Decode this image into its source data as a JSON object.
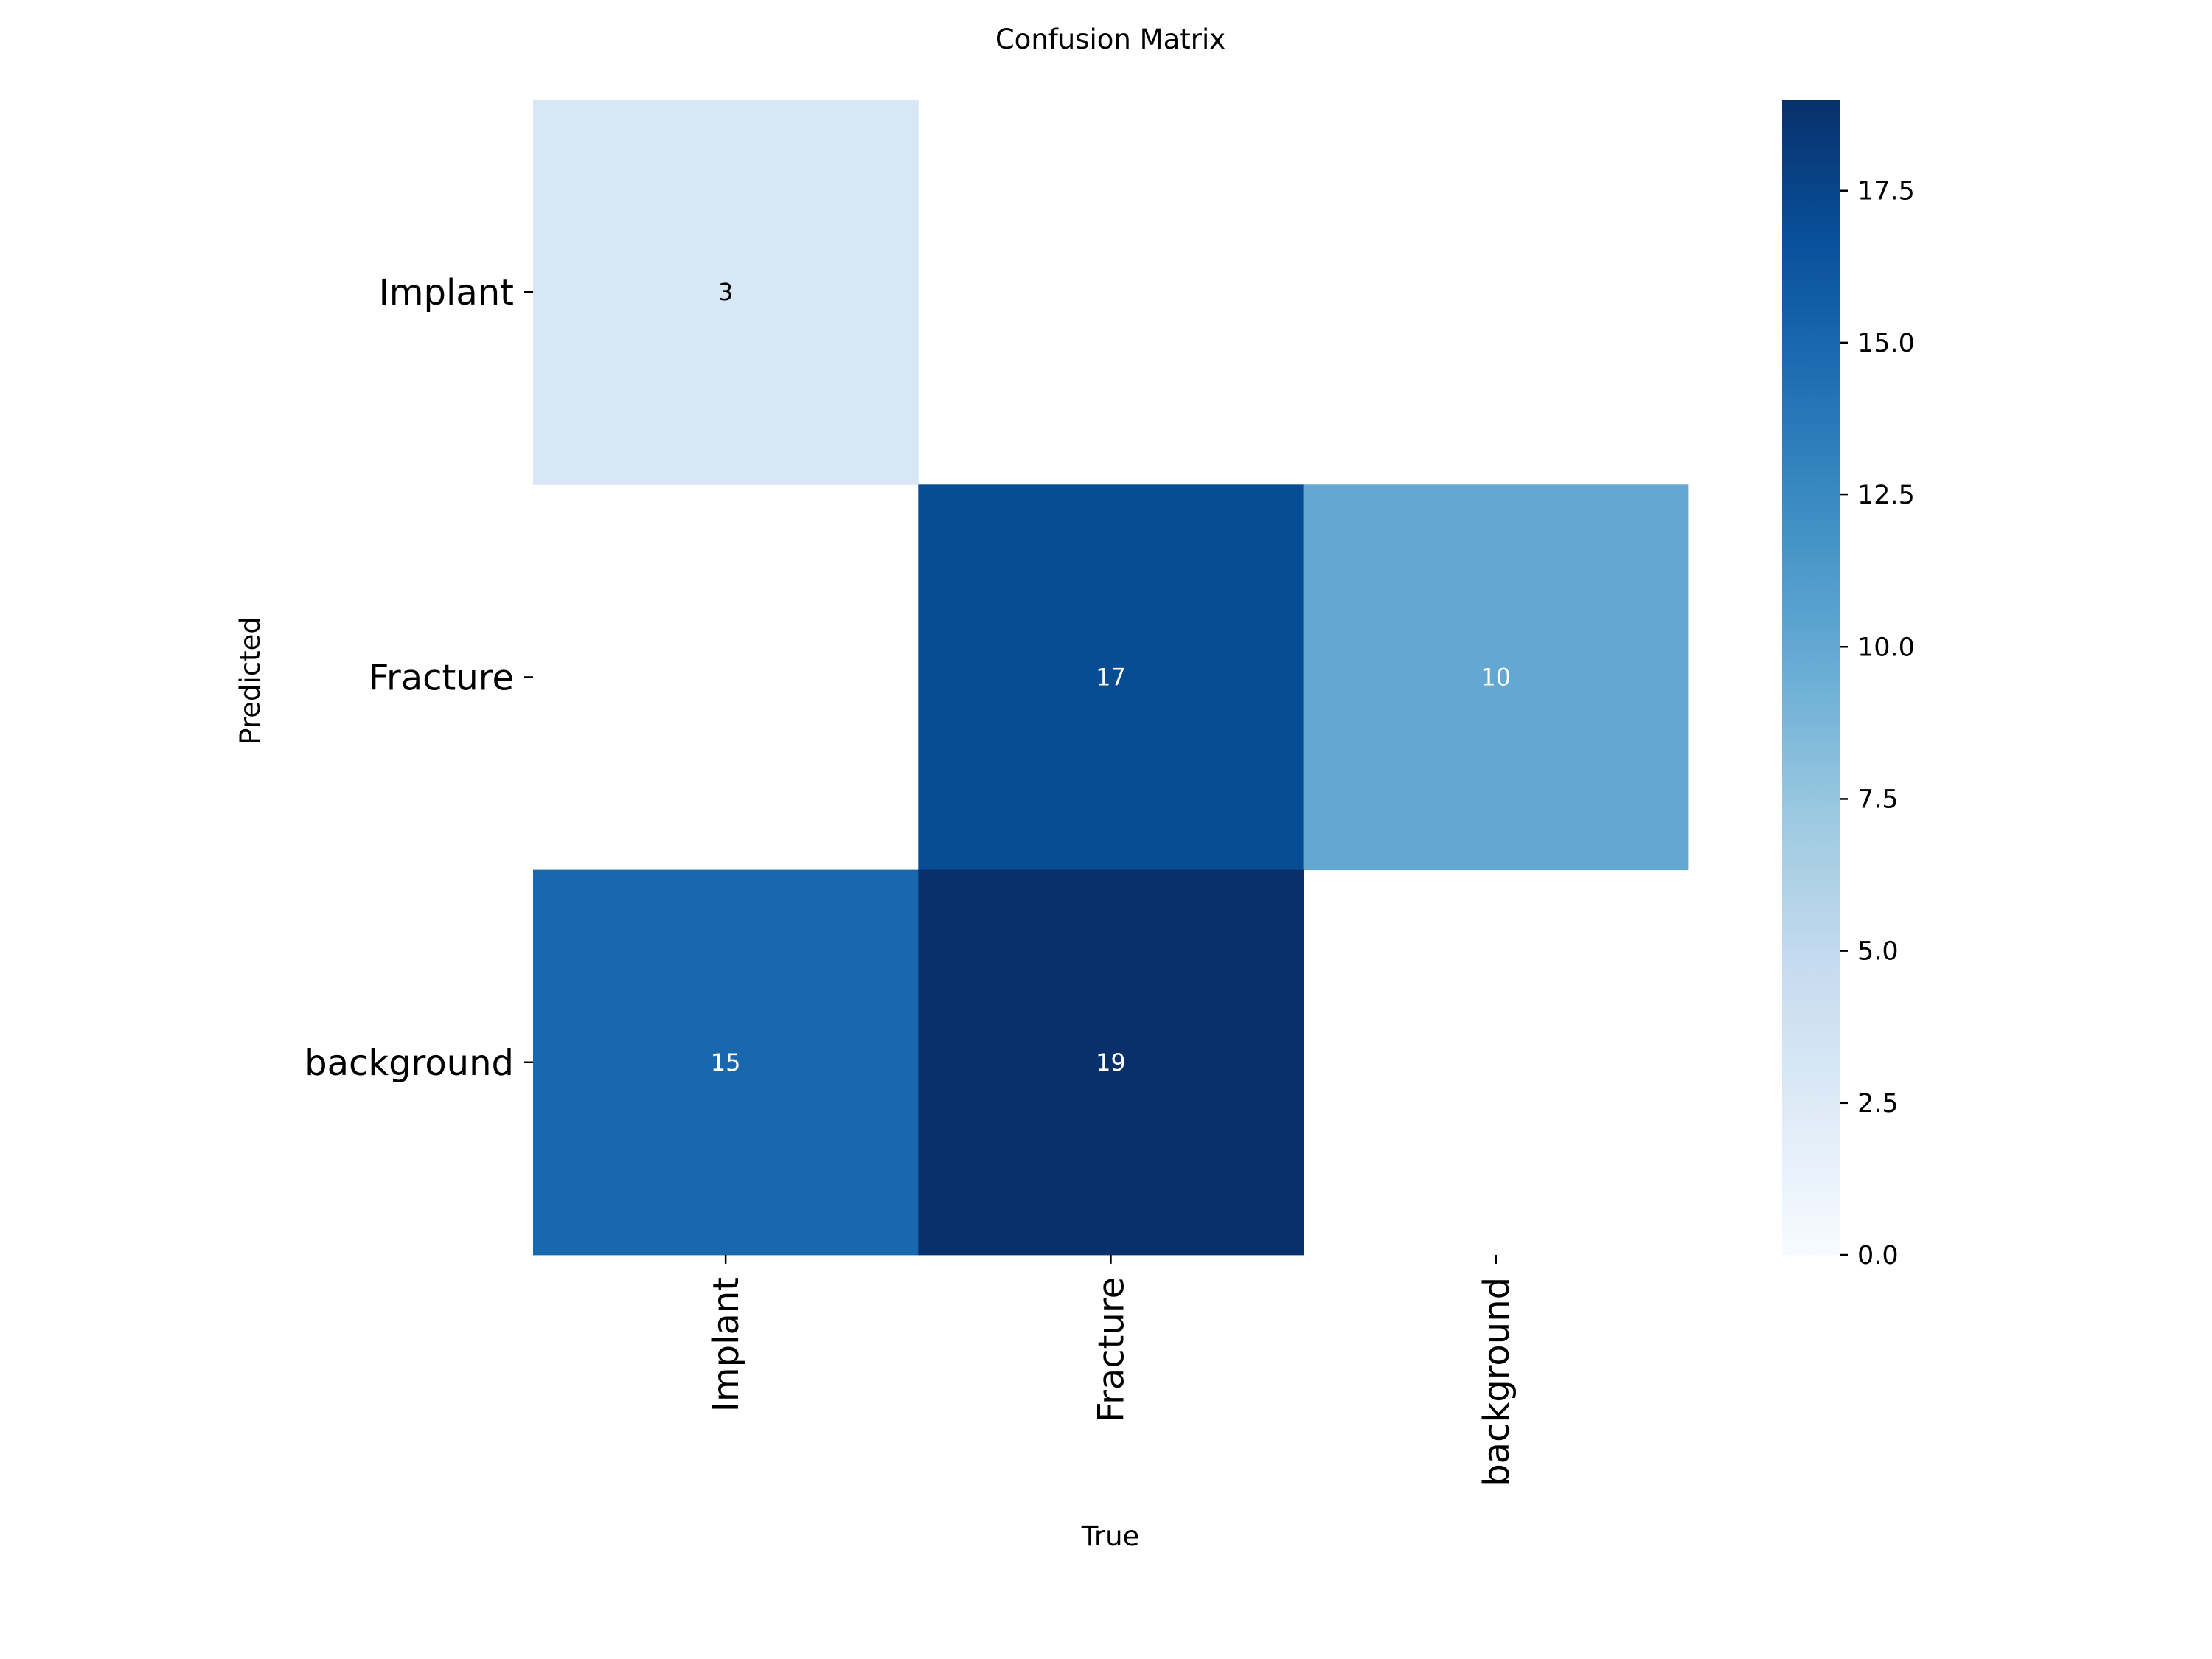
{
  "chart_data": {
    "type": "heatmap",
    "title": "Confusion Matrix",
    "xlabel": "True",
    "ylabel": "Predicted",
    "x_categories": [
      "Implant",
      "Fracture",
      "background"
    ],
    "y_categories": [
      "Implant",
      "Fracture",
      "background"
    ],
    "values": [
      [
        3,
        null,
        null
      ],
      [
        null,
        17,
        10
      ],
      [
        15,
        19,
        null
      ]
    ],
    "colorscale": "Blues",
    "colorbar": {
      "min": 0,
      "max": 19,
      "ticks": [
        0.0,
        2.5,
        5.0,
        7.5,
        10.0,
        12.5,
        15.0,
        17.5
      ],
      "tick_labels": [
        "0.0",
        "2.5",
        "5.0",
        "7.5",
        "10.0",
        "12.5",
        "15.0",
        "17.5"
      ]
    }
  }
}
